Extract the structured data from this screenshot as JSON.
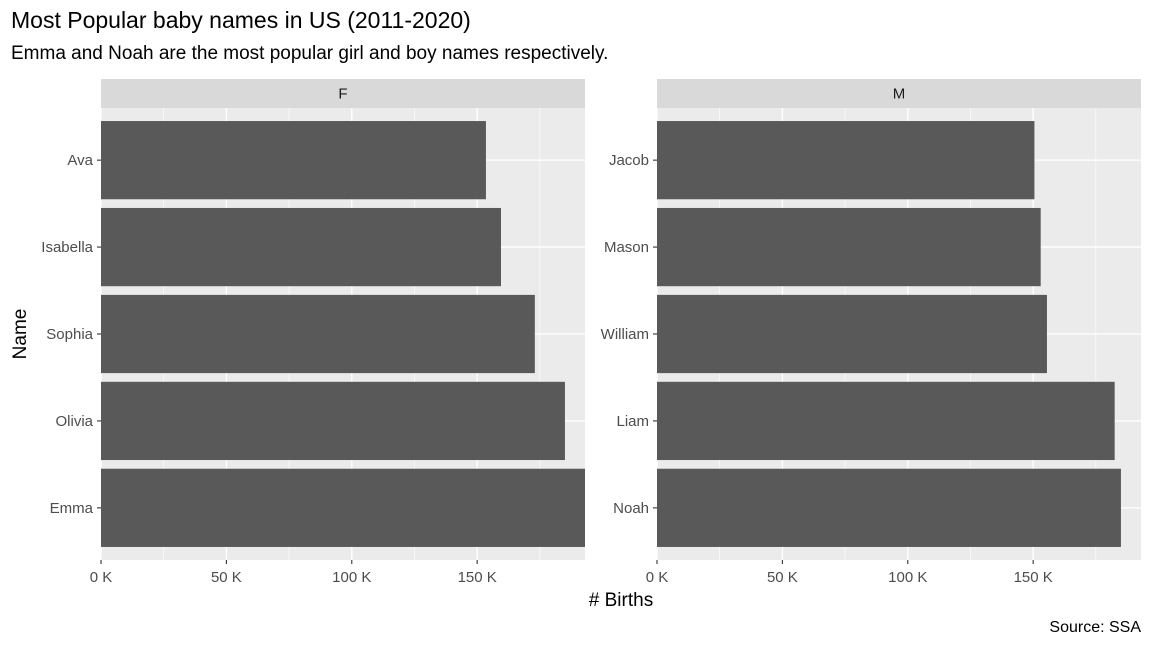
{
  "chart_data": {
    "type": "bar",
    "orientation": "horizontal",
    "title": "Most Popular baby names in US (2011-2020)",
    "subtitle": "Emma and Noah are the most popular girl and boy names respectively.",
    "caption": "Source: SSA",
    "xlabel": "# Births",
    "ylabel": "Name",
    "xlim": [
      0,
      193000
    ],
    "x_ticks": [
      0,
      50000,
      100000,
      150000
    ],
    "x_tick_labels": [
      "0 K",
      "50 K",
      "100 K",
      "150 K"
    ],
    "grid": true,
    "bar_color": "#595959",
    "panel_background": "#ebebeb",
    "strip_background": "#d9d9d9",
    "facets": [
      {
        "label": "F",
        "categories": [
          "Emma",
          "Olivia",
          "Sophia",
          "Isabella",
          "Ava"
        ],
        "values": [
          193000,
          185000,
          173000,
          159500,
          153500
        ]
      },
      {
        "label": "M",
        "categories": [
          "Noah",
          "Liam",
          "William",
          "Mason",
          "Jacob"
        ],
        "values": [
          185000,
          182500,
          155500,
          153000,
          150500
        ]
      }
    ]
  }
}
